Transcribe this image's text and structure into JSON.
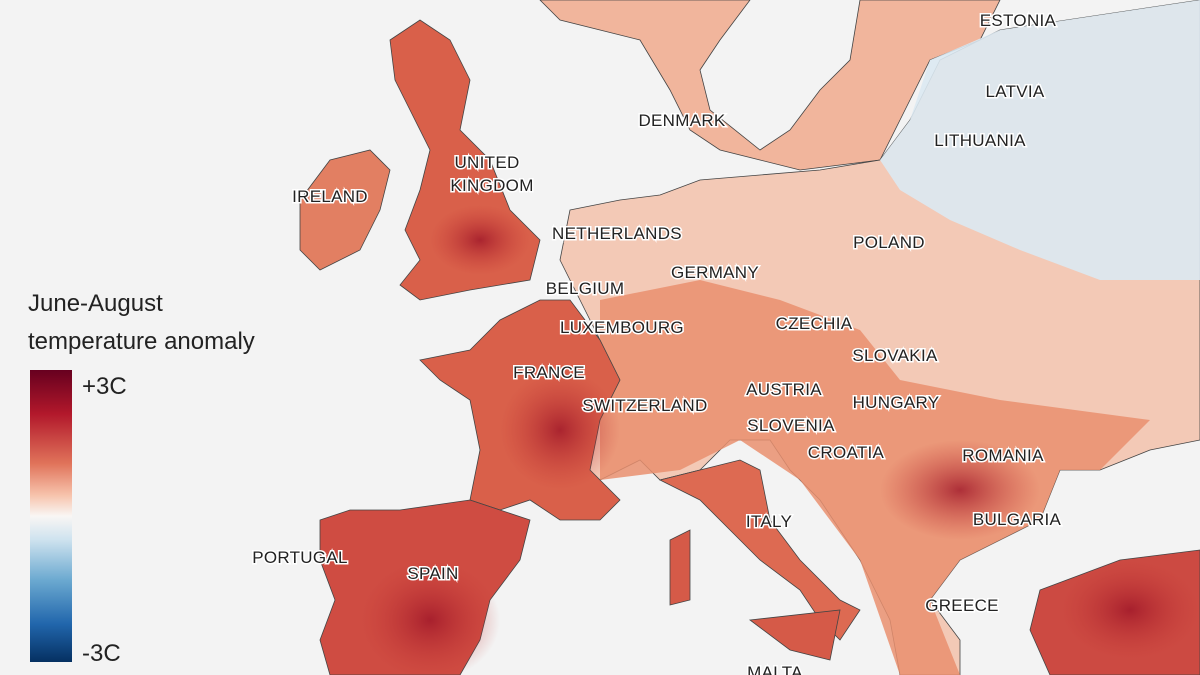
{
  "legend": {
    "title_lines": [
      "June-August",
      "temperature anomaly"
    ],
    "max_label": "+3C",
    "min_label": "-3C"
  },
  "labels": [
    "ESTONIA",
    "LATVIA",
    "LITHUANIA",
    "DENMARK",
    "UNITED",
    "KINGDOM",
    "IRELAND",
    "NETHERLANDS",
    "POLAND",
    "GERMANY",
    "BELGIUM",
    "CZECHIA",
    "LUXEMBOURG",
    "SLOVAKIA",
    "FRANCE",
    "AUSTRIA",
    "SWITZERLAND",
    "HUNGARY",
    "SLOVENIA",
    "CROATIA",
    "ROMANIA",
    "ITALY",
    "BULGARIA",
    "PORTUGAL",
    "SPAIN",
    "GREECE",
    "MALTA"
  ]
}
